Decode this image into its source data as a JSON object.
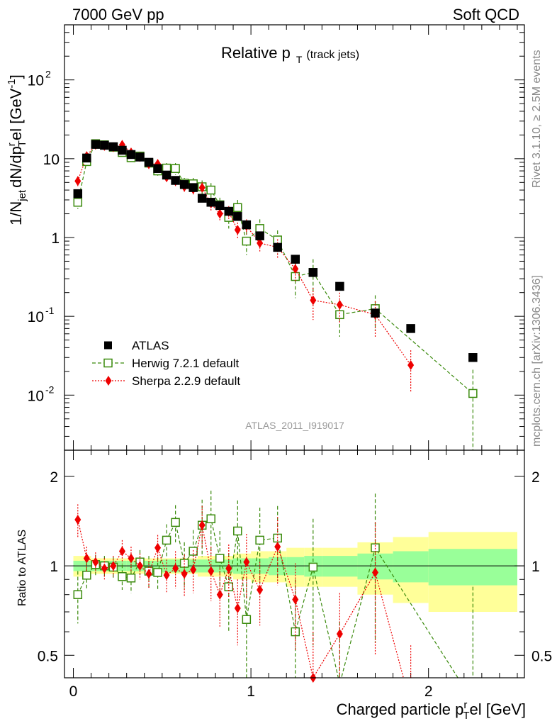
{
  "header": {
    "left": "7000 GeV pp",
    "right": "Soft QCD"
  },
  "side": {
    "rivet": "Rivet 3.1.10, ≥ 2.5M events",
    "mcplots": "mcplots.cern.ch [arXiv:1306.3436]"
  },
  "chart_data": {
    "type": "scatter",
    "title": {
      "main": "Relative p",
      "sub": "T",
      "note": "(track jets)"
    },
    "ylabel": {
      "p1": "1/N",
      "sub1": "jet",
      "p2": "dN/dp",
      "sup": "r",
      "sub2": "T",
      "p3": "el [GeV",
      "sup2": "-1",
      "p4": "]"
    },
    "ratio_ylabel": "Ratio to ATLAS",
    "xlabel": {
      "p1": "Charged particle p",
      "sup": "r",
      "sub": "T",
      "p2": "el [GeV]"
    },
    "watermark": "ATLAS_2011_I919017",
    "xlim": [
      -0.05,
      2.54
    ],
    "ylim": [
      0.002,
      500
    ],
    "yscale": "log",
    "ratio_ylim": [
      0.42,
      2.45
    ],
    "ratio_yscale": "log",
    "x_ticks": [
      {
        "v": 0,
        "label": "0"
      },
      {
        "v": 1,
        "label": "1"
      },
      {
        "v": 2,
        "label": "2"
      }
    ],
    "y_ticks": [
      {
        "v": 0.01,
        "label": "10",
        "exp": "-2"
      },
      {
        "v": 0.1,
        "label": "10",
        "exp": "-1"
      },
      {
        "v": 1,
        "label": "1",
        "exp": ""
      },
      {
        "v": 10,
        "label": "10",
        "exp": ""
      },
      {
        "v": 100,
        "label": "10",
        "exp": "2"
      }
    ],
    "ratio_ticks": [
      {
        "v": 0.5,
        "label": "0.5"
      },
      {
        "v": 1,
        "label": "1"
      },
      {
        "v": 2,
        "label": "2"
      }
    ],
    "legend": [
      {
        "name": "ATLAS",
        "marker": "square-filled",
        "color": "#000000"
      },
      {
        "name": "Herwig 7.2.1 default",
        "marker": "square-open",
        "color": "#3a8a0c",
        "line": "dashed"
      },
      {
        "name": "Sherpa 2.2.9 default",
        "marker": "diamond",
        "color": "#ee0000",
        "line": "dotted"
      }
    ],
    "series": [
      {
        "name": "ATLAS",
        "x": [
          0.025,
          0.075,
          0.125,
          0.175,
          0.225,
          0.275,
          0.325,
          0.375,
          0.425,
          0.475,
          0.525,
          0.575,
          0.625,
          0.675,
          0.725,
          0.775,
          0.825,
          0.875,
          0.925,
          0.975,
          1.05,
          1.15,
          1.25,
          1.35,
          1.5,
          1.7,
          1.9,
          2.25
        ],
        "y": [
          3.6,
          10.2,
          15.2,
          14.8,
          14.2,
          12.8,
          11.3,
          10.5,
          9.0,
          7.5,
          6.2,
          5.3,
          4.7,
          4.3,
          3.15,
          2.8,
          2.55,
          2.15,
          1.85,
          1.45,
          1.05,
          0.75,
          0.53,
          0.36,
          0.24,
          0.11,
          0.07,
          0.03
        ]
      },
      {
        "name": "Herwig 7.2.1 default",
        "x": [
          0.025,
          0.075,
          0.125,
          0.175,
          0.225,
          0.275,
          0.325,
          0.375,
          0.425,
          0.475,
          0.525,
          0.575,
          0.625,
          0.675,
          0.725,
          0.775,
          0.825,
          0.875,
          0.925,
          0.975,
          1.05,
          1.15,
          1.25,
          1.35,
          1.5,
          1.7,
          2.25
        ],
        "y": [
          2.8,
          9.2,
          15.5,
          15.0,
          14.0,
          12.0,
          10.3,
          10.8,
          8.8,
          7.0,
          7.6,
          7.5,
          4.9,
          4.8,
          4.4,
          4.0,
          2.6,
          1.8,
          2.4,
          0.9,
          1.3,
          0.93,
          0.32,
          0.36,
          0.105,
          0.125,
          0.0105
        ],
        "err": [
          0.5,
          0.8,
          1.0,
          1.0,
          1.0,
          1.0,
          1.0,
          1.0,
          1.0,
          0.9,
          1.2,
          1.3,
          0.8,
          0.9,
          0.9,
          0.9,
          0.6,
          0.5,
          0.6,
          0.3,
          0.4,
          0.3,
          0.15,
          0.17,
          0.05,
          0.06,
          0.0105
        ]
      },
      {
        "name": "Sherpa 2.2.9 default",
        "x": [
          0.025,
          0.075,
          0.125,
          0.175,
          0.225,
          0.275,
          0.325,
          0.375,
          0.425,
          0.475,
          0.525,
          0.575,
          0.625,
          0.675,
          0.725,
          0.775,
          0.825,
          0.875,
          0.925,
          0.975,
          1.05,
          1.15,
          1.25,
          1.35,
          1.5,
          1.7,
          1.9
        ],
        "y": [
          5.2,
          10.8,
          15.0,
          14.5,
          14.0,
          15.0,
          12.0,
          10.5,
          8.5,
          8.6,
          5.8,
          5.2,
          4.4,
          4.1,
          4.3,
          2.7,
          2.0,
          2.1,
          1.25,
          1.4,
          0.85,
          0.75,
          0.4,
          0.16,
          0.14,
          0.105,
          0.024
        ],
        "err": [
          0.8,
          1.0,
          1.2,
          1.2,
          1.2,
          1.2,
          1.1,
          1.0,
          0.9,
          0.9,
          0.7,
          0.7,
          0.6,
          0.6,
          0.7,
          0.5,
          0.4,
          0.4,
          0.3,
          0.3,
          0.2,
          0.2,
          0.12,
          0.07,
          0.06,
          0.05,
          0.013
        ]
      }
    ],
    "ratio_series": [
      {
        "name": "Herwig 7.2.1 default",
        "x": [
          0.025,
          0.075,
          0.125,
          0.175,
          0.225,
          0.275,
          0.325,
          0.375,
          0.425,
          0.475,
          0.525,
          0.575,
          0.625,
          0.675,
          0.725,
          0.775,
          0.825,
          0.875,
          0.925,
          0.975,
          1.05,
          1.15,
          1.25,
          1.35,
          1.5,
          1.7,
          2.25
        ],
        "y": [
          0.8,
          0.93,
          1.01,
          1.0,
          0.99,
          0.92,
          0.91,
          1.03,
          0.96,
          0.95,
          1.22,
          1.4,
          1.02,
          1.12,
          1.37,
          1.44,
          1.06,
          0.85,
          1.31,
          0.66,
          1.22,
          1.24,
          0.6,
          0.99,
          0.4,
          1.15,
          0.35
        ],
        "err": [
          0.16,
          0.1,
          0.08,
          0.08,
          0.08,
          0.09,
          0.1,
          0.1,
          0.12,
          0.12,
          0.16,
          0.2,
          0.18,
          0.2,
          0.3,
          0.35,
          0.25,
          0.25,
          0.35,
          0.25,
          0.35,
          0.35,
          0.3,
          0.45,
          0.25,
          0.6,
          0.5
        ]
      },
      {
        "name": "Sherpa 2.2.9 default",
        "x": [
          0.025,
          0.075,
          0.125,
          0.175,
          0.225,
          0.275,
          0.325,
          0.375,
          0.425,
          0.475,
          0.525,
          0.575,
          0.625,
          0.675,
          0.725,
          0.775,
          0.825,
          0.875,
          0.925,
          0.975,
          1.05,
          1.15,
          1.25,
          1.35,
          1.5,
          1.7,
          1.9
        ],
        "y": [
          1.43,
          1.06,
          1.03,
          0.98,
          1.0,
          1.12,
          1.06,
          1.0,
          0.94,
          1.15,
          0.93,
          0.98,
          0.94,
          0.97,
          1.37,
          0.96,
          0.8,
          0.98,
          0.72,
          1.03,
          0.83,
          1.16,
          0.77,
          0.42,
          0.59,
          0.95,
          0.34
        ],
        "err": [
          0.18,
          0.1,
          0.08,
          0.08,
          0.08,
          0.1,
          0.1,
          0.1,
          0.1,
          0.12,
          0.12,
          0.14,
          0.15,
          0.16,
          0.22,
          0.2,
          0.18,
          0.2,
          0.18,
          0.25,
          0.2,
          0.3,
          0.25,
          0.18,
          0.22,
          0.45,
          0.2
        ]
      }
    ],
    "ratio_bands": {
      "edges": [
        0.0,
        0.1,
        0.2,
        0.3,
        0.4,
        0.5,
        0.6,
        0.7,
        0.8,
        0.9,
        1.0,
        1.1,
        1.2,
        1.3,
        1.4,
        1.6,
        1.8,
        2.0,
        2.5
      ],
      "inner": [
        0.04,
        0.04,
        0.04,
        0.04,
        0.04,
        0.05,
        0.05,
        0.05,
        0.05,
        0.06,
        0.06,
        0.07,
        0.07,
        0.08,
        0.08,
        0.1,
        0.12,
        0.14,
        0.14
      ],
      "outer": [
        0.08,
        0.06,
        0.06,
        0.06,
        0.06,
        0.06,
        0.06,
        0.08,
        0.08,
        0.1,
        0.12,
        0.12,
        0.15,
        0.15,
        0.15,
        0.2,
        0.25,
        0.3,
        0.3
      ],
      "inner_color": "#99ff99",
      "outer_color": "#ffff99"
    }
  }
}
